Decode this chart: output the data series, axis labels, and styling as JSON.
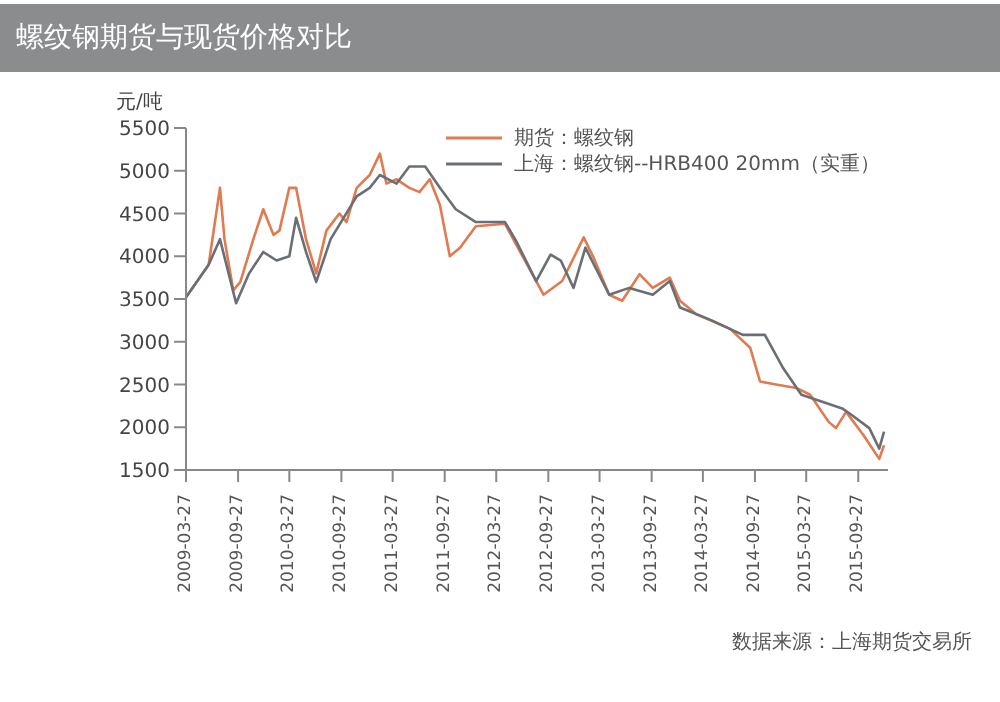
{
  "chart_data": {
    "type": "line",
    "title": "螺纹钢期货与现货价格对比",
    "ylabel": "元/吨",
    "annotations": [
      "数据来源：上海期货交易所"
    ],
    "xlim": [
      "2009-03-27",
      "2016-01-10"
    ],
    "xticks": [
      "2009-03-27",
      "2009-09-27",
      "2010-03-27",
      "2010-09-27",
      "2011-03-27",
      "2011-09-27",
      "2012-03-27",
      "2012-09-27",
      "2013-03-27",
      "2013-09-27",
      "2014-03-27",
      "2014-09-27",
      "2015-03-27",
      "2015-09-27"
    ],
    "ylim": [
      1500,
      5500
    ],
    "yticks": [
      1500,
      2000,
      2500,
      3000,
      3500,
      4000,
      4500,
      5000,
      5500
    ],
    "legend": "top right",
    "marker": "none",
    "line_style": "solid",
    "series": [
      {
        "name": "期货：螺纹钢",
        "color": "#e07a50",
        "x": [
          "2009-03-27",
          "2009-06-15",
          "2009-07-25",
          "2009-08-10",
          "2009-09-10",
          "2009-10-05",
          "2009-11-20",
          "2009-12-25",
          "2010-01-30",
          "2010-02-20",
          "2010-03-27",
          "2010-04-20",
          "2010-05-25",
          "2010-06-30",
          "2010-08-05",
          "2010-09-20",
          "2010-10-15",
          "2010-11-20",
          "2011-01-05",
          "2011-02-10",
          "2011-03-05",
          "2011-04-10",
          "2011-05-25",
          "2011-06-30",
          "2011-08-05",
          "2011-09-10",
          "2011-10-15",
          "2011-11-20",
          "2012-01-15",
          "2012-04-27",
          "2012-06-05",
          "2012-08-15",
          "2012-09-10",
          "2012-11-15",
          "2013-01-30",
          "2013-03-05",
          "2013-04-30",
          "2013-06-15",
          "2013-08-15",
          "2013-10-01",
          "2013-11-30",
          "2014-01-05",
          "2014-03-05",
          "2014-07-01",
          "2014-09-10",
          "2014-10-15",
          "2014-12-10",
          "2015-02-20",
          "2015-04-10",
          "2015-06-15",
          "2015-07-10",
          "2015-08-15",
          "2015-10-15",
          "2015-12-10",
          "2015-12-27"
        ],
        "values": [
          3520,
          3900,
          4800,
          4200,
          3600,
          3700,
          4200,
          4550,
          4250,
          4300,
          4800,
          4800,
          4200,
          3800,
          4300,
          4500,
          4400,
          4800,
          4950,
          5200,
          4850,
          4900,
          4800,
          4750,
          4900,
          4600,
          4000,
          4100,
          4350,
          4380,
          4140,
          3710,
          3550,
          3710,
          4220,
          3990,
          3550,
          3480,
          3790,
          3630,
          3750,
          3480,
          3320,
          3150,
          2930,
          2535,
          2500,
          2460,
          2380,
          2060,
          1990,
          2180,
          1910,
          1630,
          1790
        ]
      },
      {
        "name": "上海：螺纹钢--HRB400 20mm（实重）",
        "color": "#6a6e75",
        "x": [
          "2009-03-27",
          "2009-06-15",
          "2009-07-25",
          "2009-09-20",
          "2009-11-05",
          "2009-12-25",
          "2010-02-10",
          "2010-03-27",
          "2010-04-20",
          "2010-05-25",
          "2010-06-30",
          "2010-08-20",
          "2010-11-20",
          "2011-01-05",
          "2011-02-10",
          "2011-04-10",
          "2011-05-25",
          "2011-07-20",
          "2011-09-10",
          "2011-11-05",
          "2012-01-15",
          "2012-04-27",
          "2012-06-05",
          "2012-08-15",
          "2012-10-05",
          "2012-11-10",
          "2012-12-25",
          "2013-02-05",
          "2013-04-30",
          "2013-07-10",
          "2013-10-01",
          "2013-11-30",
          "2014-01-05",
          "2014-04-27",
          "2014-08-15",
          "2014-11-01",
          "2015-01-05",
          "2015-03-10",
          "2015-05-20",
          "2015-08-01",
          "2015-09-05",
          "2015-11-05",
          "2015-12-10",
          "2015-12-27"
        ],
        "values": [
          3520,
          3900,
          4200,
          3450,
          3800,
          4050,
          3950,
          4000,
          4450,
          4050,
          3700,
          4200,
          4700,
          4800,
          4950,
          4850,
          5050,
          5050,
          4800,
          4550,
          4400,
          4400,
          4180,
          3710,
          4020,
          3950,
          3630,
          4100,
          3550,
          3630,
          3550,
          3710,
          3400,
          3250,
          3080,
          3080,
          2690,
          2380,
          2300,
          2220,
          2140,
          1990,
          1750,
          1950
        ]
      }
    ]
  }
}
